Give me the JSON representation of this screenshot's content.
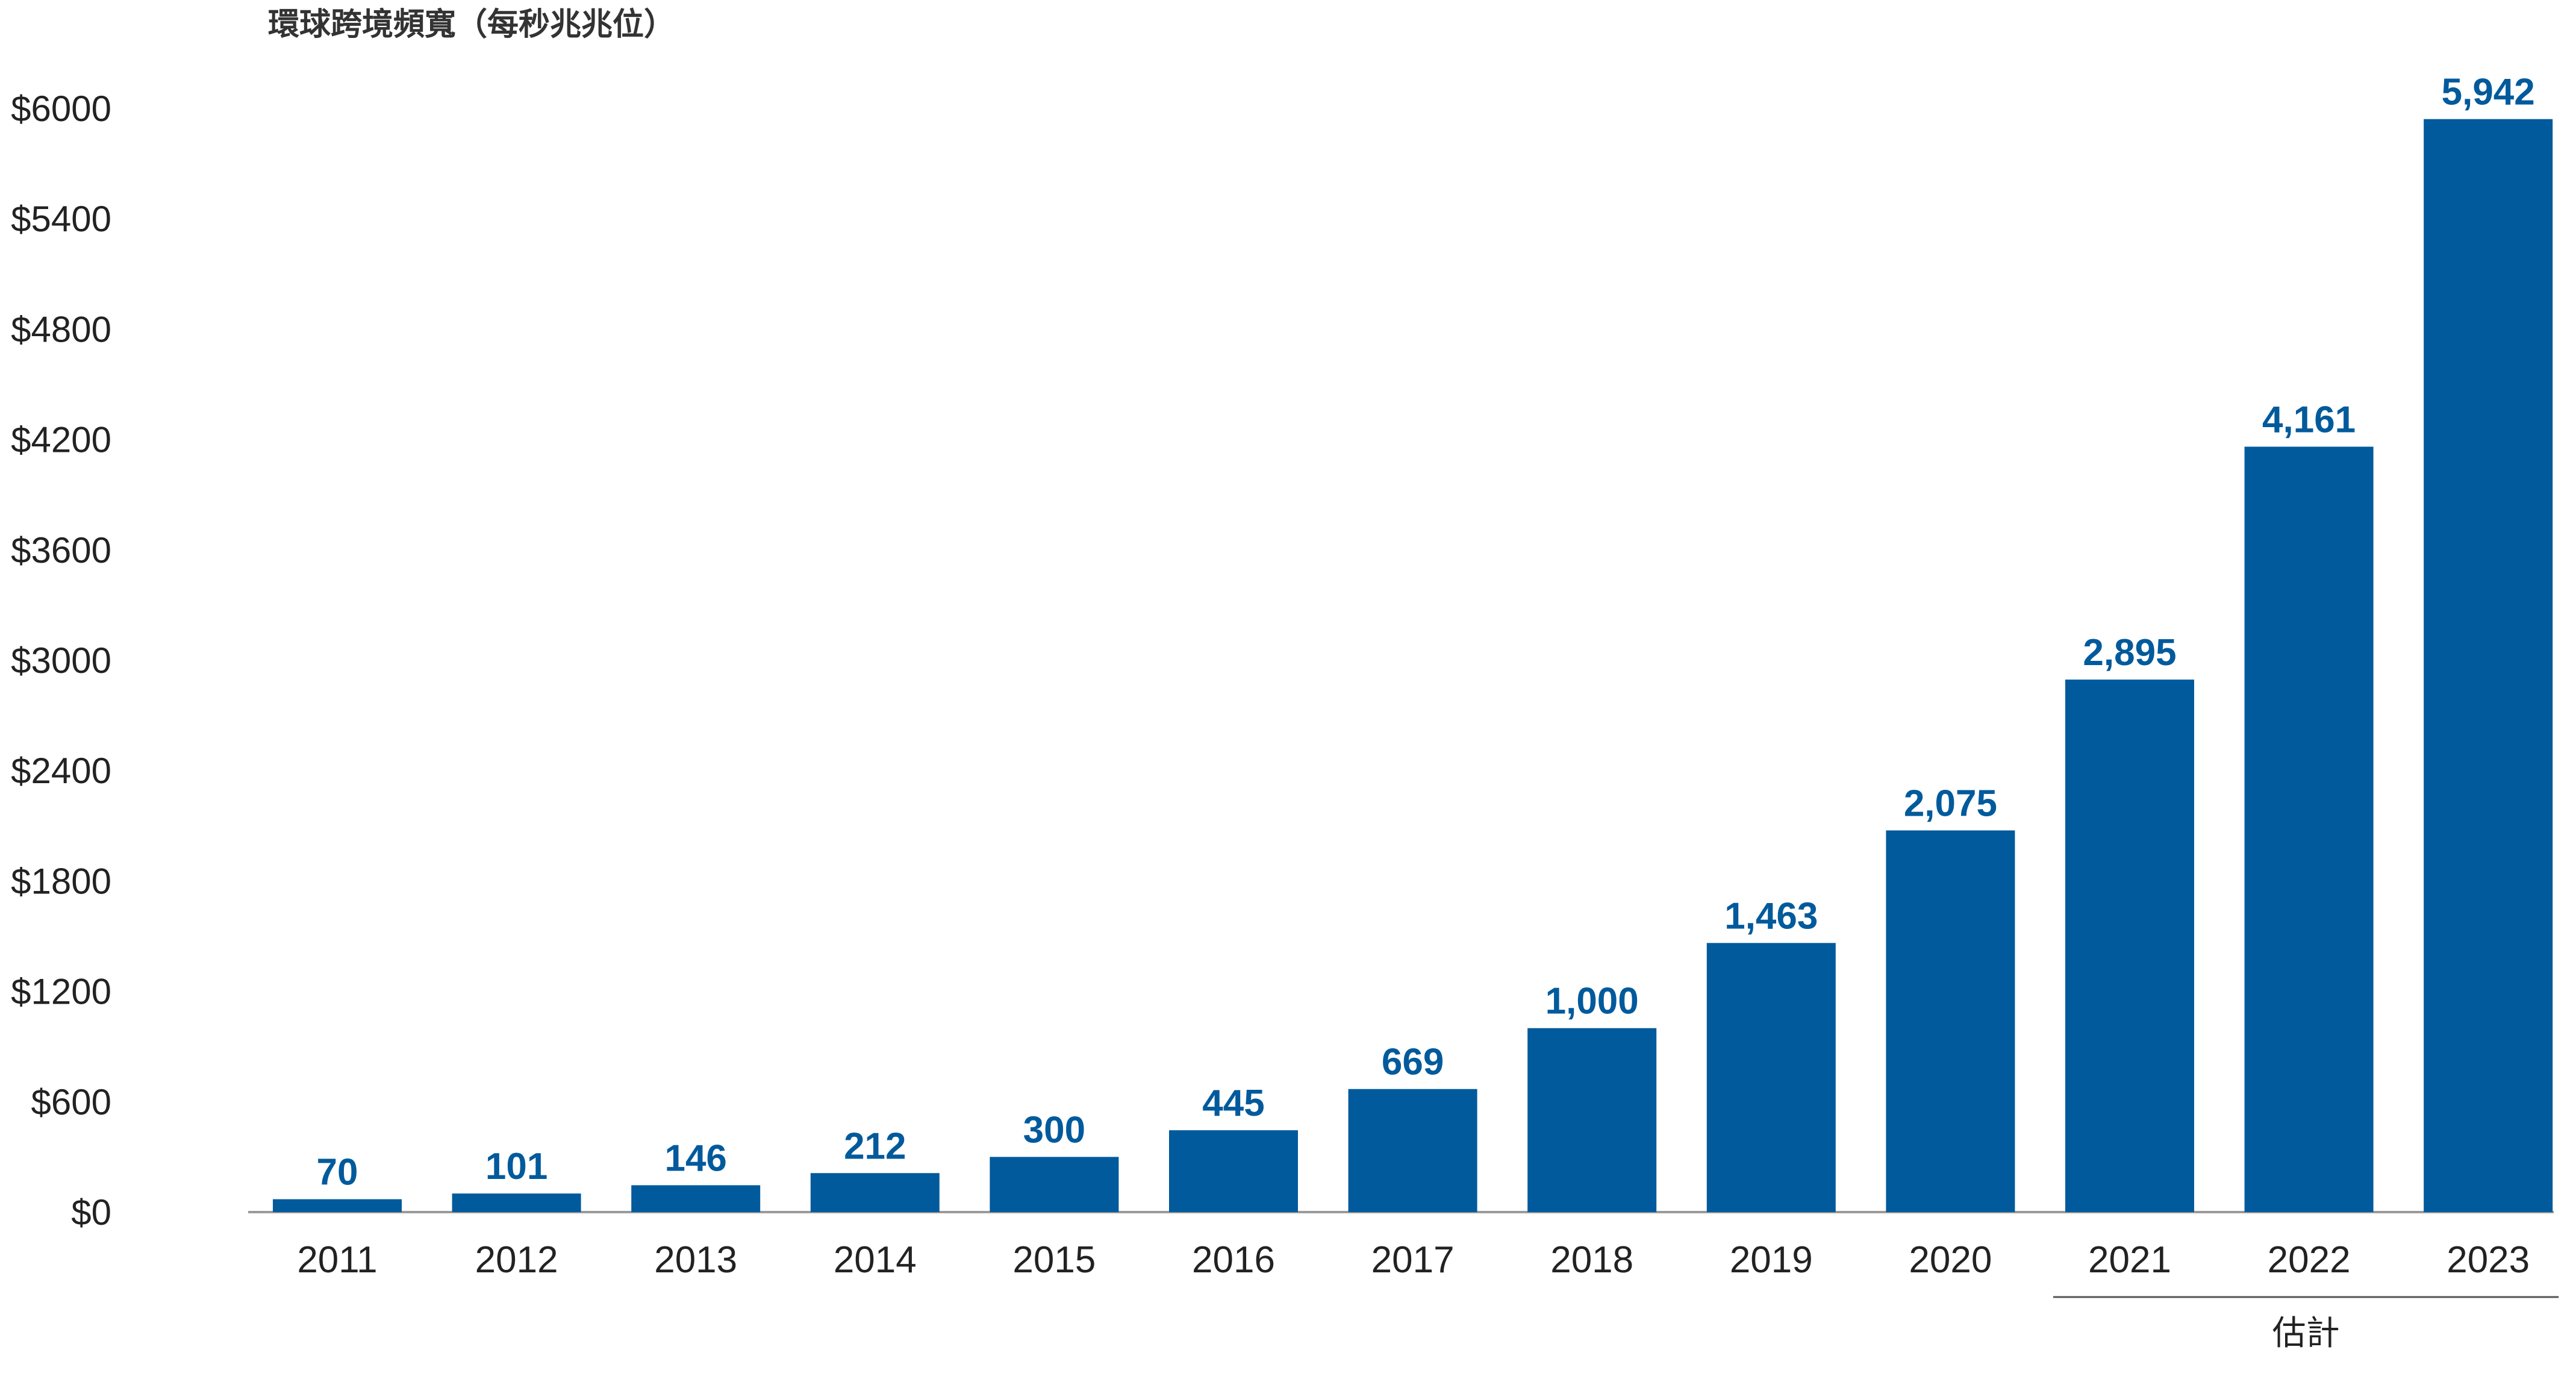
{
  "chart_data": {
    "type": "bar",
    "title": "環球跨境頻寬（每秒兆兆位）",
    "categories": [
      "2011",
      "2012",
      "2013",
      "2014",
      "2015",
      "2016",
      "2017",
      "2018",
      "2019",
      "2020",
      "2021",
      "2022",
      "2023"
    ],
    "values": [
      70,
      101,
      146,
      212,
      300,
      445,
      669,
      1000,
      1463,
      2075,
      2895,
      4161,
      5942
    ],
    "value_labels": [
      "70",
      "101",
      "146",
      "212",
      "300",
      "445",
      "669",
      "1,000",
      "1,463",
      "2,075",
      "2,895",
      "4,161",
      "5,942"
    ],
    "yticks": [
      "$0",
      "$600",
      "$1200",
      "$1800",
      "$2400",
      "$3000",
      "$3600",
      "$4200",
      "$4800",
      "$5400",
      "$6000"
    ],
    "ytick_values": [
      0,
      600,
      1200,
      1800,
      2400,
      3000,
      3600,
      4200,
      4800,
      5400,
      6000
    ],
    "ylim": [
      0,
      6000
    ],
    "grid": false,
    "estimate_label": "估計",
    "estimate_categories": [
      "2021",
      "2022",
      "2023"
    ],
    "bar_color": "#005a9c",
    "label_color": "#005a9c"
  }
}
